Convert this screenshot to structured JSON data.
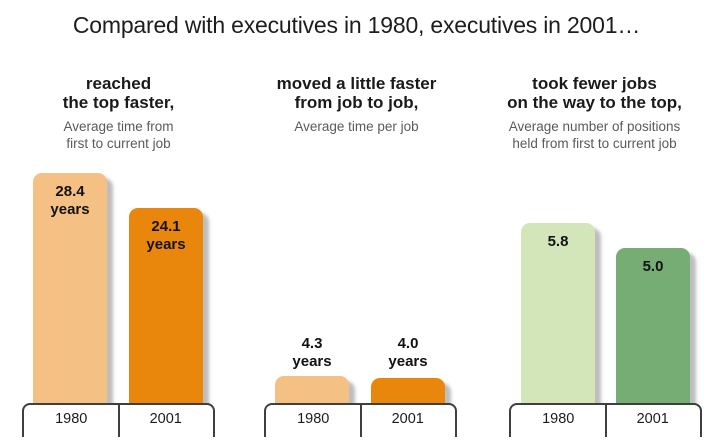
{
  "title": "Compared with executives in 1980, executives in 2001…",
  "chart_data": [
    {
      "type": "bar",
      "title": "reached\nthe top faster,",
      "subtitle": "Average time from\nfirst to current job",
      "categories": [
        "1980",
        "2001"
      ],
      "values": [
        28.4,
        24.1
      ],
      "bar_labels": [
        "28.4\nyears",
        "24.1\nyears"
      ],
      "colors": [
        "#f5c083",
        "#e9870d"
      ],
      "label_placement": "inside-top",
      "legend": "none",
      "grid": "off"
    },
    {
      "type": "bar",
      "title": "moved a little faster\nfrom job to job,",
      "subtitle": "Average time per job",
      "categories": [
        "1980",
        "2001"
      ],
      "values": [
        4.3,
        4.0
      ],
      "bar_labels": [
        "4.3\nyears",
        "4.0\nyears"
      ],
      "colors": [
        "#f5c083",
        "#e9870d"
      ],
      "label_placement": "above",
      "legend": "none",
      "grid": "off"
    },
    {
      "type": "bar",
      "title": "took fewer jobs\non the way to the top,",
      "subtitle": "Average number of positions\nheld from first to current job",
      "categories": [
        "1980",
        "2001"
      ],
      "values": [
        5.8,
        5.0
      ],
      "bar_labels": [
        "5.8",
        "5.0"
      ],
      "colors": [
        "#d3e6ba",
        "#76ad74"
      ],
      "label_placement": "inside-top",
      "legend": "none",
      "grid": "off"
    }
  ]
}
